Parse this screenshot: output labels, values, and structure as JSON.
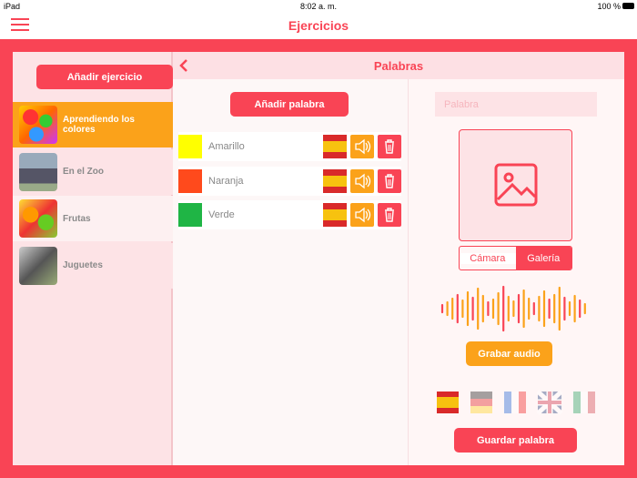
{
  "status_bar": {
    "device": "iPad",
    "time": "8:02 a. m.",
    "battery": "100 %"
  },
  "header": {
    "title": "Ejercicios"
  },
  "sidebar": {
    "add_button": "Añadir ejercicio",
    "items": [
      {
        "label": "Aprendiendo los colores",
        "selected": true
      },
      {
        "label": "En el Zoo",
        "selected": false
      },
      {
        "label": "Frutas",
        "selected": false
      },
      {
        "label": "Juguetes",
        "selected": false
      }
    ]
  },
  "main": {
    "title": "Palabras",
    "add_button": "Añadir palabra",
    "words": [
      {
        "label": "Amarillo",
        "color": "#ffff00"
      },
      {
        "label": "Naranja",
        "color": "#ff4a1c"
      },
      {
        "label": "Verde",
        "color": "#1fb545"
      }
    ]
  },
  "editor": {
    "placeholder": "Palabra",
    "segments": [
      "Cámara",
      "Galería"
    ],
    "record_button": "Grabar audio",
    "save_button": "Guardar palabra"
  }
}
